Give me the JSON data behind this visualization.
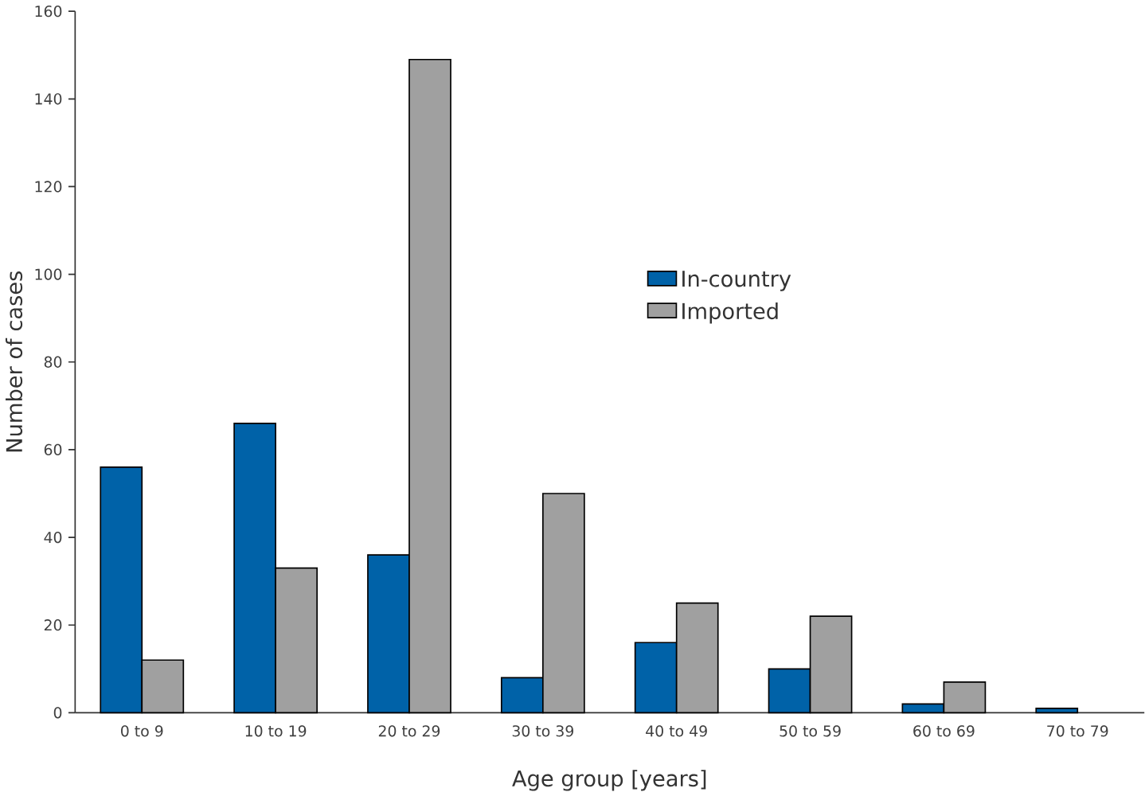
{
  "chart_data": {
    "type": "bar",
    "xlabel": "Age group [years]",
    "ylabel": "Number of cases",
    "categories": [
      "0 to 9",
      "10 to 19",
      "20 to 29",
      "30 to 39",
      "40 to 49",
      "50 to 59",
      "60 to 69",
      "70 to 79"
    ],
    "series": [
      {
        "name": "In-country",
        "color": "#0062a8",
        "values": [
          56,
          66,
          36,
          8,
          16,
          10,
          2,
          1
        ]
      },
      {
        "name": "Imported",
        "color": "#a0a0a0",
        "values": [
          12,
          33,
          149,
          50,
          25,
          22,
          7,
          null
        ]
      }
    ],
    "ylim": [
      0,
      160
    ],
    "yticks": [
      0,
      20,
      40,
      60,
      80,
      100,
      120,
      140,
      160
    ],
    "grid": false,
    "legend": "top right"
  }
}
